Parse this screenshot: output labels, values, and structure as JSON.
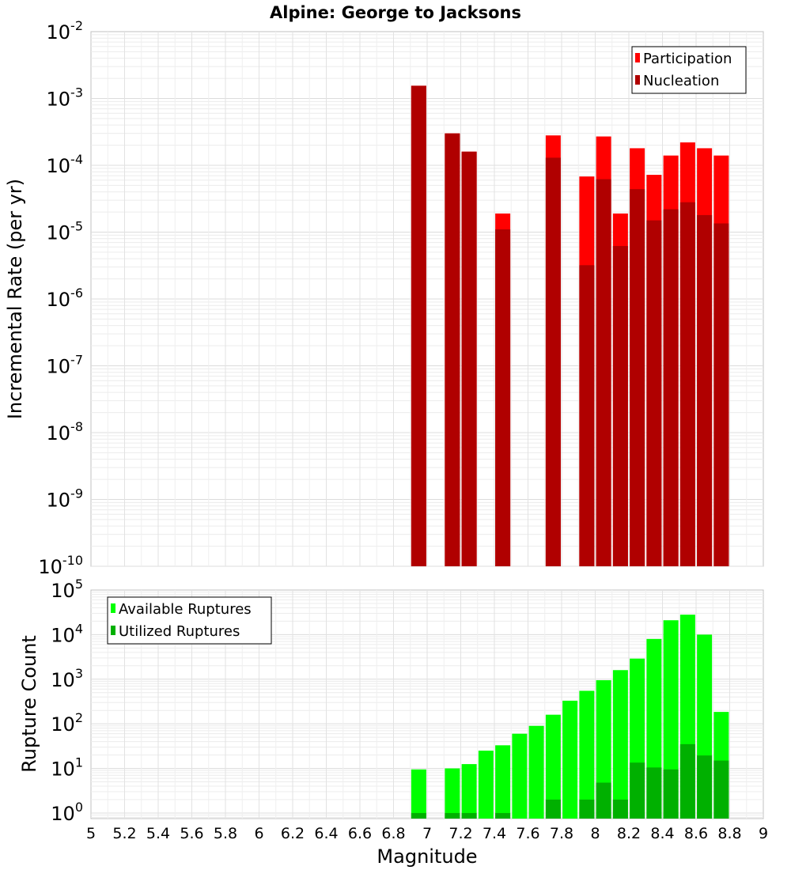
{
  "chart_data": [
    {
      "type": "bar",
      "title": "Alpine: George to Jacksons",
      "ylabel": "Incremental Rate (per yr)",
      "yscale": "log",
      "ylim": [
        1e-10,
        0.01
      ],
      "xlim": [
        5,
        9
      ],
      "grid": true,
      "legend_position": "top-right",
      "x": [
        6.95,
        7.15,
        7.25,
        7.45,
        7.75,
        7.95,
        8.05,
        8.15,
        8.25,
        8.35,
        8.45,
        8.55,
        8.65,
        8.75
      ],
      "series": [
        {
          "name": "Participation",
          "color": "#ff0000",
          "values": [
            0.00155,
            0.0003,
            0.00016,
            1.9e-05,
            0.00028,
            6.8e-05,
            0.00027,
            1.9e-05,
            0.00018,
            7.2e-05,
            0.00014,
            0.00022,
            0.00018,
            0.00014
          ]
        },
        {
          "name": "Nucleation",
          "color": "#b00000",
          "values": [
            0.00155,
            0.0003,
            0.00016,
            1.1e-05,
            0.00013,
            3.2e-06,
            6.2e-05,
            6.2e-06,
            4.4e-05,
            1.5e-05,
            2.2e-05,
            2.8e-05,
            1.8e-05,
            1.35e-05
          ]
        }
      ],
      "ytick_labels": [
        {
          "base": "10",
          "exp": "-10"
        },
        {
          "base": "10",
          "exp": "-9"
        },
        {
          "base": "10",
          "exp": "-8"
        },
        {
          "base": "10",
          "exp": "-7"
        },
        {
          "base": "10",
          "exp": "-6"
        },
        {
          "base": "10",
          "exp": "-5"
        },
        {
          "base": "10",
          "exp": "-4"
        },
        {
          "base": "10",
          "exp": "-3"
        },
        {
          "base": "10",
          "exp": "-2"
        }
      ]
    },
    {
      "type": "bar",
      "xlabel": "Magnitude",
      "ylabel": "Rupture Count",
      "yscale": "log",
      "ylim": [
        0.75,
        100000
      ],
      "xlim": [
        5,
        9
      ],
      "grid": true,
      "legend_position": "top-left",
      "x": [
        6.95,
        7.15,
        7.25,
        7.35,
        7.45,
        7.55,
        7.65,
        7.75,
        7.85,
        7.95,
        8.05,
        8.15,
        8.25,
        8.35,
        8.45,
        8.55,
        8.65,
        8.75
      ],
      "series": [
        {
          "name": "Available Ruptures",
          "color": "#00ff00",
          "values": [
            9.5,
            10,
            12.5,
            25,
            33,
            60,
            90,
            160,
            330,
            550,
            950,
            1600,
            2900,
            8000,
            21000,
            28000,
            10000,
            185
          ]
        },
        {
          "name": "Utilized Ruptures",
          "color": "#00b000",
          "values": [
            1,
            1,
            1,
            0,
            1,
            0,
            0,
            2,
            0,
            2,
            4.8,
            2,
            13.5,
            10.5,
            9.5,
            35,
            19.5,
            15
          ]
        }
      ],
      "ytick_labels": [
        {
          "base": "10",
          "exp": "0"
        },
        {
          "base": "10",
          "exp": "1"
        },
        {
          "base": "10",
          "exp": "2"
        },
        {
          "base": "10",
          "exp": "3"
        },
        {
          "base": "10",
          "exp": "4"
        },
        {
          "base": "10",
          "exp": "5"
        }
      ],
      "xtick_labels": [
        "5",
        "5.2",
        "5.4",
        "5.6",
        "5.8",
        "6",
        "6.2",
        "6.4",
        "6.6",
        "6.8",
        "7",
        "7.2",
        "7.4",
        "7.6",
        "7.8",
        "8",
        "8.2",
        "8.4",
        "8.6",
        "8.8",
        "9"
      ]
    }
  ]
}
